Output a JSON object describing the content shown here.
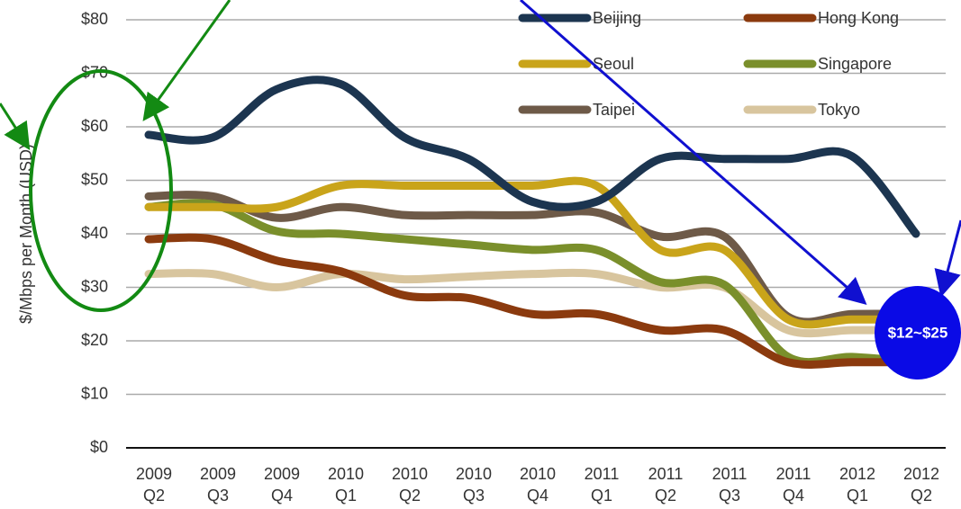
{
  "chart_data": {
    "type": "line",
    "y_label": "$/Mbps per Month (USD)",
    "categories": [
      "2009\nQ2",
      "2009\nQ3",
      "2009\nQ4",
      "2010\nQ1",
      "2010\nQ2",
      "2010\nQ3",
      "2010\nQ4",
      "2011\nQ1",
      "2011\nQ2",
      "2011\nQ3",
      "2011\nQ4",
      "2012\nQ1",
      "2012\nQ2"
    ],
    "series": [
      {
        "name": "Beijing",
        "color": "#1c3550",
        "values": [
          58.5,
          58,
          67,
          68,
          58,
          54,
          46,
          46,
          54,
          54,
          54,
          54.5,
          40
        ]
      },
      {
        "name": "Hong Kong",
        "color": "#8b3a0e",
        "values": [
          39,
          39,
          35,
          33,
          28.5,
          28,
          25,
          25,
          22,
          22,
          16,
          16,
          16
        ]
      },
      {
        "name": "Seoul",
        "color": "#c9a41a",
        "values": [
          45,
          45,
          45,
          49,
          49,
          49,
          49,
          49,
          37,
          37,
          24,
          24,
          24
        ]
      },
      {
        "name": "Singapore",
        "color": "#7a8f2b",
        "values": [
          45,
          45.5,
          40.5,
          40,
          39,
          38,
          37,
          37,
          31,
          30.5,
          17,
          17,
          16
        ]
      },
      {
        "name": "Taipei",
        "color": "#6e5a48",
        "values": [
          47,
          47,
          43,
          45,
          43.5,
          43.5,
          43.5,
          44,
          39.5,
          39.5,
          24.5,
          25,
          25
        ]
      },
      {
        "name": "Tokyo",
        "color": "#d8c59e",
        "values": [
          32.5,
          32.5,
          30,
          32.5,
          31.5,
          32,
          32.5,
          32.5,
          30,
          30,
          22,
          22,
          22
        ]
      }
    ],
    "ylim": [
      0,
      80
    ],
    "yticks": [
      {
        "value": 0,
        "label": "$0"
      },
      {
        "value": 10,
        "label": "$10"
      },
      {
        "value": 20,
        "label": "$20"
      },
      {
        "value": 30,
        "label": "$30"
      },
      {
        "value": 40,
        "label": "$40"
      },
      {
        "value": 50,
        "label": "$50"
      },
      {
        "value": 60,
        "label": "$60"
      },
      {
        "value": 70,
        "label": "$70"
      },
      {
        "value": 80,
        "label": "$80"
      }
    ],
    "grid": true,
    "annotations": [
      "$12~$25"
    ]
  }
}
